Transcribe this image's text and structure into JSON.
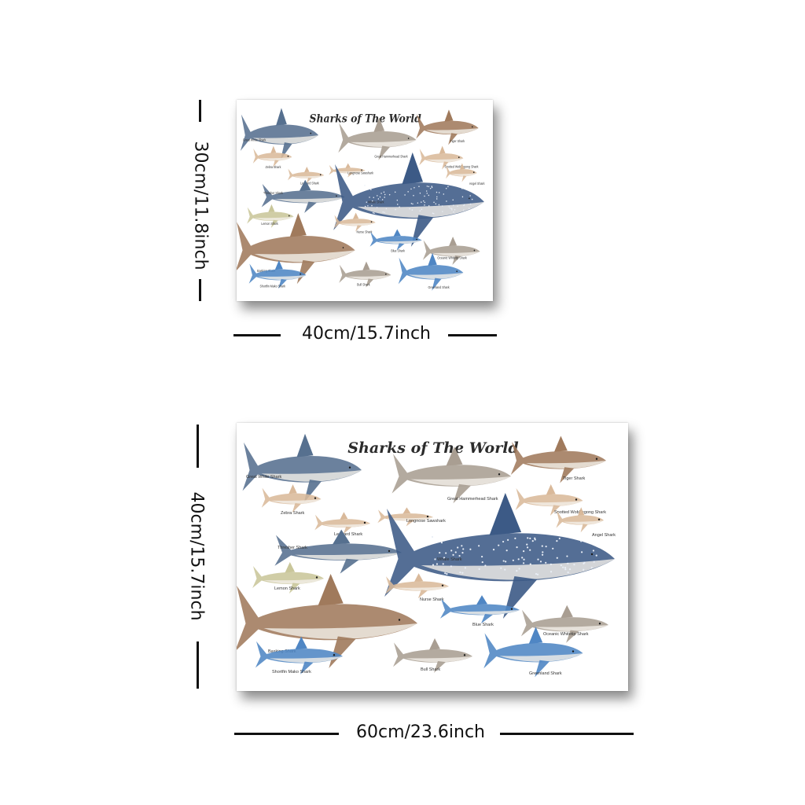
{
  "poster_title": "Sharks of The World",
  "sizes": {
    "small": {
      "width_label": "40cm/15.7inch",
      "height_label": "30cm/11.8inch"
    },
    "large": {
      "width_label": "60cm/23.6inch",
      "height_label": "40cm/15.7inch"
    }
  },
  "species": {
    "great_white": "Great White Shark",
    "hammerhead": "Great Hammerhead Shark",
    "tiger": "Tiger Shark",
    "zebra": "Zebra Shark",
    "longnose_sawshark": "Longnose Sawshark",
    "wobbegong": "Spotted Wobbegong Shark",
    "leopard": "Leopard Shark",
    "angel": "Angel Shark",
    "thresher": "Thresher Shark",
    "whale": "Whale Shark",
    "lemon": "Lemon Shark",
    "nurse": "Nurse Shark",
    "basking": "Basking Shark",
    "blue": "Blue Shark",
    "oceanic_whitetip": "Oceanic Whitetip Shark",
    "shortfin_mako": "Shortfin Mako Shark",
    "bull": "Bull Shark",
    "greenland": "Greenland Shark"
  },
  "colors": {
    "shadow": "#000000",
    "whale_body": "#3c5a86",
    "great_white": "#56708f",
    "brown": "#a07a5c",
    "sand": "#d9b99a",
    "blue": "#4f86c4",
    "olive": "#c9c69a",
    "grey": "#a99e92"
  }
}
